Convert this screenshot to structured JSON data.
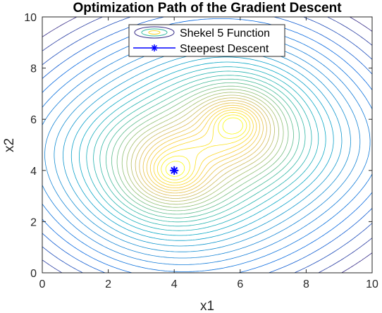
{
  "chart_data": {
    "type": "contour",
    "title": "Optimization Path of the Gradient Descent",
    "xlabel": "x1",
    "ylabel": "x2",
    "xlim": [
      0,
      10
    ],
    "ylim": [
      0,
      10
    ],
    "xticks": [
      "0",
      "2",
      "4",
      "6",
      "8",
      "10"
    ],
    "yticks": [
      "0",
      "2",
      "4",
      "6",
      "8",
      "10"
    ],
    "grid": false,
    "legend": {
      "placement": "top-center",
      "entries": [
        "Shekel 5 Function",
        "Steepest Descent"
      ]
    },
    "contour": {
      "name": "Shekel 5 Function",
      "colormap": "parula",
      "levels": 30,
      "centers": [
        [
          4,
          4
        ],
        [
          5.8,
          5.8
        ]
      ]
    },
    "series": [
      {
        "name": "Steepest Descent",
        "color": "#0000ff",
        "marker": "asterisk",
        "points": [
          [
            4.0,
            4.0
          ]
        ]
      }
    ]
  }
}
